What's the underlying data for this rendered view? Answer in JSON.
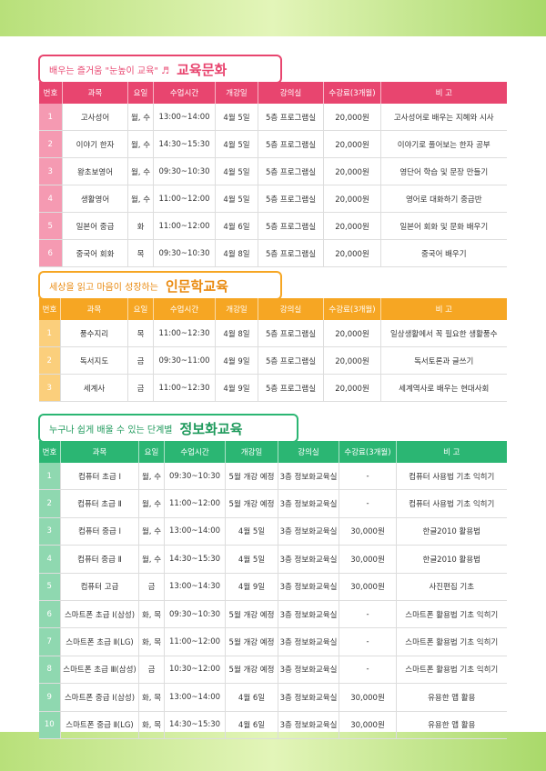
{
  "sections": [
    {
      "banner_small": "배우는 즐거움 \"눈높이 교육\" ♬",
      "banner_big": "교육문화",
      "headers": [
        "번호",
        "과목",
        "요일",
        "수업시간",
        "개강일",
        "강의실",
        "수강료(3개월)",
        "비 고"
      ],
      "rows": [
        [
          "1",
          "고사성어",
          "월, 수",
          "13:00~14:00",
          "4월 5일",
          "5층 프로그램실",
          "20,000원",
          "고사성어로 배우는 지혜와 시사"
        ],
        [
          "2",
          "이야기 한자",
          "월, 수",
          "14:30~15:30",
          "4월 5일",
          "5층 프로그램실",
          "20,000원",
          "이야기로 풀어보는 한자 공부"
        ],
        [
          "3",
          "왕초보영어",
          "월, 수",
          "09:30~10:30",
          "4월 5일",
          "5층 프로그램실",
          "20,000원",
          "영단어 학습 및 문장 만들기"
        ],
        [
          "4",
          "생활영어",
          "월, 수",
          "11:00~12:00",
          "4월 5일",
          "5층 프로그램실",
          "20,000원",
          "영어로 대화하기 중급반"
        ],
        [
          "5",
          "일본어 중급",
          "화",
          "11:00~12:00",
          "4월 6일",
          "5층 프로그램실",
          "20,000원",
          "일본어 회화 및 문화 배우기"
        ],
        [
          "6",
          "중국어 회화",
          "목",
          "09:30~10:30",
          "4월 8일",
          "5층 프로그램실",
          "20,000원",
          "중국어 배우기"
        ]
      ]
    },
    {
      "banner_small": "세상을 읽고 마음이 성장하는",
      "banner_big": "인문학교육",
      "headers": [
        "번호",
        "과목",
        "요일",
        "수업시간",
        "개강일",
        "강의실",
        "수강료(3개월)",
        "비 고"
      ],
      "rows": [
        [
          "1",
          "풍수지리",
          "목",
          "11:00~12:30",
          "4월 8일",
          "5층 프로그램실",
          "20,000원",
          "일상생활에서 꼭 필요한 생활풍수"
        ],
        [
          "2",
          "독서지도",
          "금",
          "09:30~11:00",
          "4월 9일",
          "5층 프로그램실",
          "20,000원",
          "독서토론과 글쓰기"
        ],
        [
          "3",
          "세계사",
          "금",
          "11:00~12:30",
          "4월 9일",
          "5층 프로그램실",
          "20,000원",
          "세계역사로 배우는 현대사회"
        ]
      ]
    },
    {
      "banner_small": "누구나 쉽게 배울 수 있는 단계별",
      "banner_big": "정보화교육",
      "headers": [
        "번호",
        "과목",
        "요일",
        "수업시간",
        "개강일",
        "강의실",
        "수강료(3개월)",
        "비 고"
      ],
      "rows": [
        [
          "1",
          "컴퓨터 초급 Ⅰ",
          "월, 수",
          "09:30~10:30",
          "5월 개강 예정",
          "3층 정보화교육실",
          "-",
          "컴퓨터 사용법 기초 익히기"
        ],
        [
          "2",
          "컴퓨터 초급 Ⅱ",
          "월, 수",
          "11:00~12:00",
          "5월 개강 예정",
          "3층 정보화교육실",
          "-",
          "컴퓨터 사용법 기초 익히기"
        ],
        [
          "3",
          "컴퓨터 중급 Ⅰ",
          "월, 수",
          "13:00~14:00",
          "4월 5일",
          "3층 정보화교육실",
          "30,000원",
          "한글2010 활용법"
        ],
        [
          "4",
          "컴퓨터 중급 Ⅱ",
          "월, 수",
          "14:30~15:30",
          "4월 5일",
          "3층 정보화교육실",
          "30,000원",
          "한글2010 활용법"
        ],
        [
          "5",
          "컴퓨터 고급",
          "금",
          "13:00~14:30",
          "4월 9일",
          "3층 정보화교육실",
          "30,000원",
          "사진편집 기초"
        ],
        [
          "6",
          "스마트폰 초급 Ⅰ(삼성)",
          "화, 목",
          "09:30~10:30",
          "5월 개강 예정",
          "3층 정보화교육실",
          "-",
          "스마트폰 활용법 기초 익히기"
        ],
        [
          "7",
          "스마트폰 초급 Ⅱ(LG)",
          "화, 목",
          "11:00~12:00",
          "5월 개강 예정",
          "3층 정보화교육실",
          "-",
          "스마트폰 활용법 기초 익히기"
        ],
        [
          "8",
          "스마트폰 초급 Ⅲ(삼성)",
          "금",
          "10:30~12:00",
          "5월 개강 예정",
          "3층 정보화교육실",
          "-",
          "스마트폰 활용법 기초 익히기"
        ],
        [
          "9",
          "스마트폰 중급 Ⅰ(삼성)",
          "화, 목",
          "13:00~14:00",
          "4월 6일",
          "3층 정보화교육실",
          "30,000원",
          "유용한 앱 활용"
        ],
        [
          "10",
          "스마트폰 중급 Ⅱ(LG)",
          "화, 목",
          "14:30~15:30",
          "4월 6일",
          "3층 정보화교육실",
          "30,000원",
          "유용한 앱 활용"
        ]
      ]
    }
  ]
}
